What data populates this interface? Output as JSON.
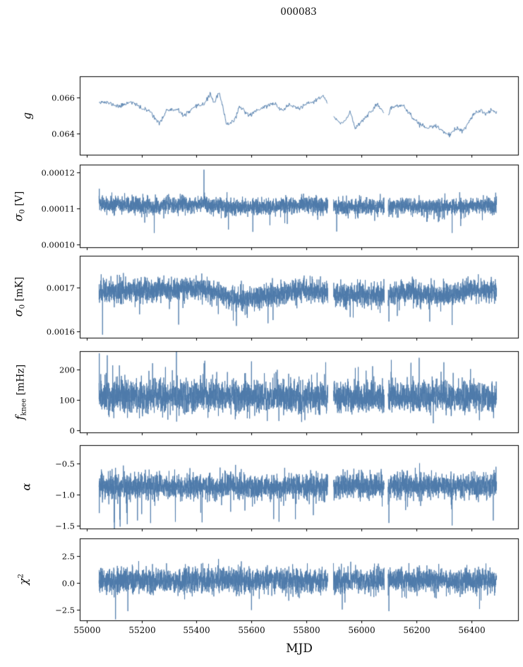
{
  "chart_data": {
    "type": "line",
    "title": "000083",
    "xlabel": "MJD",
    "line_color": "#4e7aaa",
    "axis_color": "#000000",
    "background": "#ffffff",
    "legend": "none",
    "grid": false,
    "xlim": [
      54975,
      56570
    ],
    "x_data_range": [
      55045,
      56492
    ],
    "xticks": [
      {
        "v": 55000,
        "label": "55000"
      },
      {
        "v": 55200,
        "label": "55200"
      },
      {
        "v": 55400,
        "label": "55400"
      },
      {
        "v": 55600,
        "label": "55600"
      },
      {
        "v": 55800,
        "label": "55800"
      },
      {
        "v": 56000,
        "label": "56000"
      },
      {
        "v": 56200,
        "label": "56200"
      },
      {
        "v": 56400,
        "label": "56400"
      }
    ],
    "gaps": [
      [
        55878,
        55898
      ],
      [
        56083,
        56097
      ]
    ],
    "panels": [
      {
        "id": "g",
        "ylabel_segments": [
          {
            "text": "g",
            "style": "it"
          }
        ],
        "ylim": [
          0.0628,
          0.0672
        ],
        "yticks": [
          {
            "v": 0.066,
            "label": "0.066"
          },
          {
            "v": 0.064,
            "label": "0.064"
          }
        ],
        "series": {
          "seed": 11,
          "n": 760,
          "noise": 6e-05,
          "anchors": [
            [
              55045,
              0.0658
            ],
            [
              55080,
              0.0657
            ],
            [
              55120,
              0.0655
            ],
            [
              55160,
              0.0658
            ],
            [
              55200,
              0.0654
            ],
            [
              55235,
              0.0652
            ],
            [
              55265,
              0.0645
            ],
            [
              55290,
              0.0653
            ],
            [
              55330,
              0.0653
            ],
            [
              55355,
              0.065
            ],
            [
              55400,
              0.0655
            ],
            [
              55430,
              0.0657
            ],
            [
              55450,
              0.0662
            ],
            [
              55465,
              0.0657
            ],
            [
              55482,
              0.0663
            ],
            [
              55510,
              0.0645
            ],
            [
              55535,
              0.0647
            ],
            [
              55560,
              0.0655
            ],
            [
              55590,
              0.065
            ],
            [
              55620,
              0.0653
            ],
            [
              55650,
              0.0655
            ],
            [
              55680,
              0.0657
            ],
            [
              55710,
              0.0653
            ],
            [
              55740,
              0.0656
            ],
            [
              55770,
              0.0654
            ],
            [
              55800,
              0.0656
            ],
            [
              55840,
              0.0659
            ],
            [
              55862,
              0.0661
            ],
            [
              55905,
              0.0648
            ],
            [
              55930,
              0.0645
            ],
            [
              55960,
              0.0652
            ],
            [
              55977,
              0.0643
            ],
            [
              56020,
              0.065
            ],
            [
              56060,
              0.0656
            ],
            [
              56090,
              0.065
            ],
            [
              56120,
              0.0655
            ],
            [
              56150,
              0.0656
            ],
            [
              56190,
              0.0648
            ],
            [
              56215,
              0.0645
            ],
            [
              56240,
              0.0643
            ],
            [
              56270,
              0.0644
            ],
            [
              56300,
              0.0641
            ],
            [
              56322,
              0.0639
            ],
            [
              56350,
              0.0643
            ],
            [
              56368,
              0.0641
            ],
            [
              56390,
              0.0646
            ],
            [
              56412,
              0.0651
            ],
            [
              56435,
              0.0653
            ],
            [
              56455,
              0.0651
            ],
            [
              56475,
              0.0653
            ],
            [
              56492,
              0.0652
            ]
          ]
        }
      },
      {
        "id": "sigma0-V",
        "ylabel_segments": [
          {
            "text": "σ",
            "style": "it"
          },
          {
            "text": "0",
            "style": "sub"
          },
          {
            "text": " [V]",
            "style": "n"
          }
        ],
        "ylim": [
          9.92e-05,
          0.0001222
        ],
        "yticks": [
          {
            "v": 0.00012,
            "label": "0.00012"
          },
          {
            "v": 0.00011,
            "label": "0.00011"
          },
          {
            "v": 0.0001,
            "label": "0.00010"
          }
        ],
        "series": {
          "seed": 23,
          "n": 3800,
          "noise": 1.15e-06,
          "anchors": [
            [
              55045,
              0.0001112
            ],
            [
              55150,
              0.000111
            ],
            [
              55250,
              0.0001106
            ],
            [
              55350,
              0.000111
            ],
            [
              55430,
              0.0001112
            ],
            [
              55550,
              0.0001103
            ],
            [
              55650,
              0.0001105
            ],
            [
              55750,
              0.0001109
            ],
            [
              55860,
              0.0001111
            ],
            [
              55950,
              0.0001103
            ],
            [
              56050,
              0.0001105
            ],
            [
              56150,
              0.0001107
            ],
            [
              56250,
              0.0001102
            ],
            [
              56350,
              0.0001105
            ],
            [
              56492,
              0.0001108
            ]
          ],
          "spikes": [
            {
              "p": 0.005,
              "sign": -1,
              "min": 2e-06,
              "max": 6.2e-06
            },
            {
              "p": 0.002,
              "sign": 1,
              "min": 1e-06,
              "max": 2.8e-06
            }
          ],
          "events": [
            [
              55046,
              0.0001155
            ],
            [
              55427,
              0.0001208
            ],
            [
              55246,
              0.0001032
            ],
            [
              55605,
              0.0001035
            ],
            [
              55910,
              0.0001036
            ],
            [
              56330,
              0.0001032
            ]
          ]
        }
      },
      {
        "id": "sigma0-mK",
        "ylabel_segments": [
          {
            "text": "σ",
            "style": "it"
          },
          {
            "text": "0",
            "style": "sub"
          },
          {
            "text": " [mK]",
            "style": "n"
          }
        ],
        "ylim": [
          0.001585,
          0.001772
        ],
        "yticks": [
          {
            "v": 0.0017,
            "label": "0.0017"
          },
          {
            "v": 0.0016,
            "label": "0.0016"
          }
        ],
        "series": {
          "seed": 37,
          "n": 3800,
          "noise": 1.3e-05,
          "anchors": [
            [
              55045,
              0.001692
            ],
            [
              55250,
              0.001694
            ],
            [
              55420,
              0.001698
            ],
            [
              55520,
              0.001678
            ],
            [
              55560,
              0.001672
            ],
            [
              55700,
              0.001684
            ],
            [
              55790,
              0.001694
            ],
            [
              55880,
              0.001688
            ],
            [
              55930,
              0.001682
            ],
            [
              56000,
              0.001684
            ],
            [
              56100,
              0.001682
            ],
            [
              56150,
              0.001689
            ],
            [
              56250,
              0.001682
            ],
            [
              56320,
              0.001684
            ],
            [
              56400,
              0.001694
            ],
            [
              56492,
              0.001692
            ]
          ],
          "spikes": [
            {
              "p": 0.007,
              "sign": -1,
              "min": 2e-05,
              "max": 6e-05
            },
            {
              "p": 0.002,
              "sign": 1,
              "min": 1e-05,
              "max": 3e-05
            }
          ],
          "events": [
            [
              55058,
              0.001592
            ],
            [
              55335,
              0.001615
            ],
            [
              55545,
              0.001612
            ],
            [
              55660,
              0.001618
            ],
            [
              56330,
              0.001614
            ],
            [
              56100,
              0.001622
            ]
          ]
        }
      },
      {
        "id": "fknee",
        "ylabel_segments": [
          {
            "text": "f",
            "style": "it"
          },
          {
            "text": "knee",
            "style": "sub"
          },
          {
            "text": " [mHz]",
            "style": "n"
          }
        ],
        "ylim": [
          -8,
          262
        ],
        "yticks": [
          {
            "v": 200,
            "label": "200"
          },
          {
            "v": 100,
            "label": "100"
          },
          {
            "v": 0,
            "label": "0"
          }
        ],
        "series": {
          "seed": 51,
          "n": 3800,
          "noise": 26,
          "anchors": [
            [
              55045,
              110
            ],
            [
              55400,
              112
            ],
            [
              55800,
              108
            ],
            [
              56200,
              112
            ],
            [
              56492,
              110
            ]
          ],
          "spikes": [
            {
              "p": 0.01,
              "sign": 1,
              "min": 55,
              "max": 125
            },
            {
              "p": 0.004,
              "sign": -1,
              "min": 20,
              "max": 45
            }
          ],
          "events": [
            [
              55046,
              255
            ],
            [
              55095,
              215
            ],
            [
              55240,
              222
            ],
            [
              55430,
              230
            ],
            [
              55600,
              228
            ],
            [
              55870,
              225
            ],
            [
              56180,
              218
            ],
            [
              56300,
              225
            ]
          ]
        }
      },
      {
        "id": "alpha",
        "ylabel_segments": [
          {
            "text": "α",
            "style": "it"
          }
        ],
        "ylim": [
          -1.55,
          -0.2
        ],
        "yticks": [
          {
            "v": -0.5,
            "label": "−0.5"
          },
          {
            "v": -1.0,
            "label": "−1.0"
          },
          {
            "v": -1.5,
            "label": "−1.5"
          }
        ],
        "series": {
          "seed": 67,
          "n": 3800,
          "noise": 0.1,
          "anchors": [
            [
              55045,
              -0.86
            ],
            [
              55300,
              -0.87
            ],
            [
              55600,
              -0.88
            ],
            [
              55900,
              -0.86
            ],
            [
              56200,
              -0.85
            ],
            [
              56492,
              -0.85
            ]
          ],
          "spikes": [
            {
              "p": 0.007,
              "sign": -1,
              "min": 0.22,
              "max": 0.5
            },
            {
              "p": 0.002,
              "sign": 1,
              "min": 0.1,
              "max": 0.2
            }
          ],
          "events": [
            [
              55046,
              -1.3
            ],
            [
              55100,
              -1.45
            ],
            [
              55122,
              -1.52
            ],
            [
              55148,
              -1.48
            ],
            [
              55185,
              -1.42
            ],
            [
              55420,
              -1.45
            ],
            [
              55700,
              -1.44
            ],
            [
              55760,
              -1.4
            ],
            [
              56100,
              -1.46
            ],
            [
              56330,
              -1.5
            ],
            [
              56480,
              -1.42
            ]
          ]
        }
      },
      {
        "id": "chi2",
        "ylabel_segments": [
          {
            "text": "χ",
            "style": "it"
          },
          {
            "text": "2",
            "style": "sup"
          }
        ],
        "ylim": [
          -3.45,
          4.1
        ],
        "yticks": [
          {
            "v": 2.5,
            "label": "2.5"
          },
          {
            "v": 0.0,
            "label": "0.0"
          },
          {
            "v": -2.5,
            "label": "−2.5"
          }
        ],
        "series": {
          "seed": 83,
          "n": 3800,
          "noise": 0.55,
          "anchors": [
            [
              55045,
              0.25
            ],
            [
              55500,
              0.22
            ],
            [
              56000,
              0.25
            ],
            [
              56492,
              0.25
            ]
          ],
          "spikes": [
            {
              "p": 0.004,
              "sign": 1,
              "min": 0.6,
              "max": 1.3
            },
            {
              "p": 0.004,
              "sign": -1,
              "min": 0.6,
              "max": 1.3
            }
          ],
          "events": [
            [
              55105,
              -3.35
            ],
            [
              55150,
              -2.6
            ],
            [
              55600,
              -2.5
            ],
            [
              55930,
              -2.45
            ],
            [
              56100,
              -2.6
            ],
            [
              56430,
              -2.4
            ]
          ]
        }
      }
    ]
  }
}
